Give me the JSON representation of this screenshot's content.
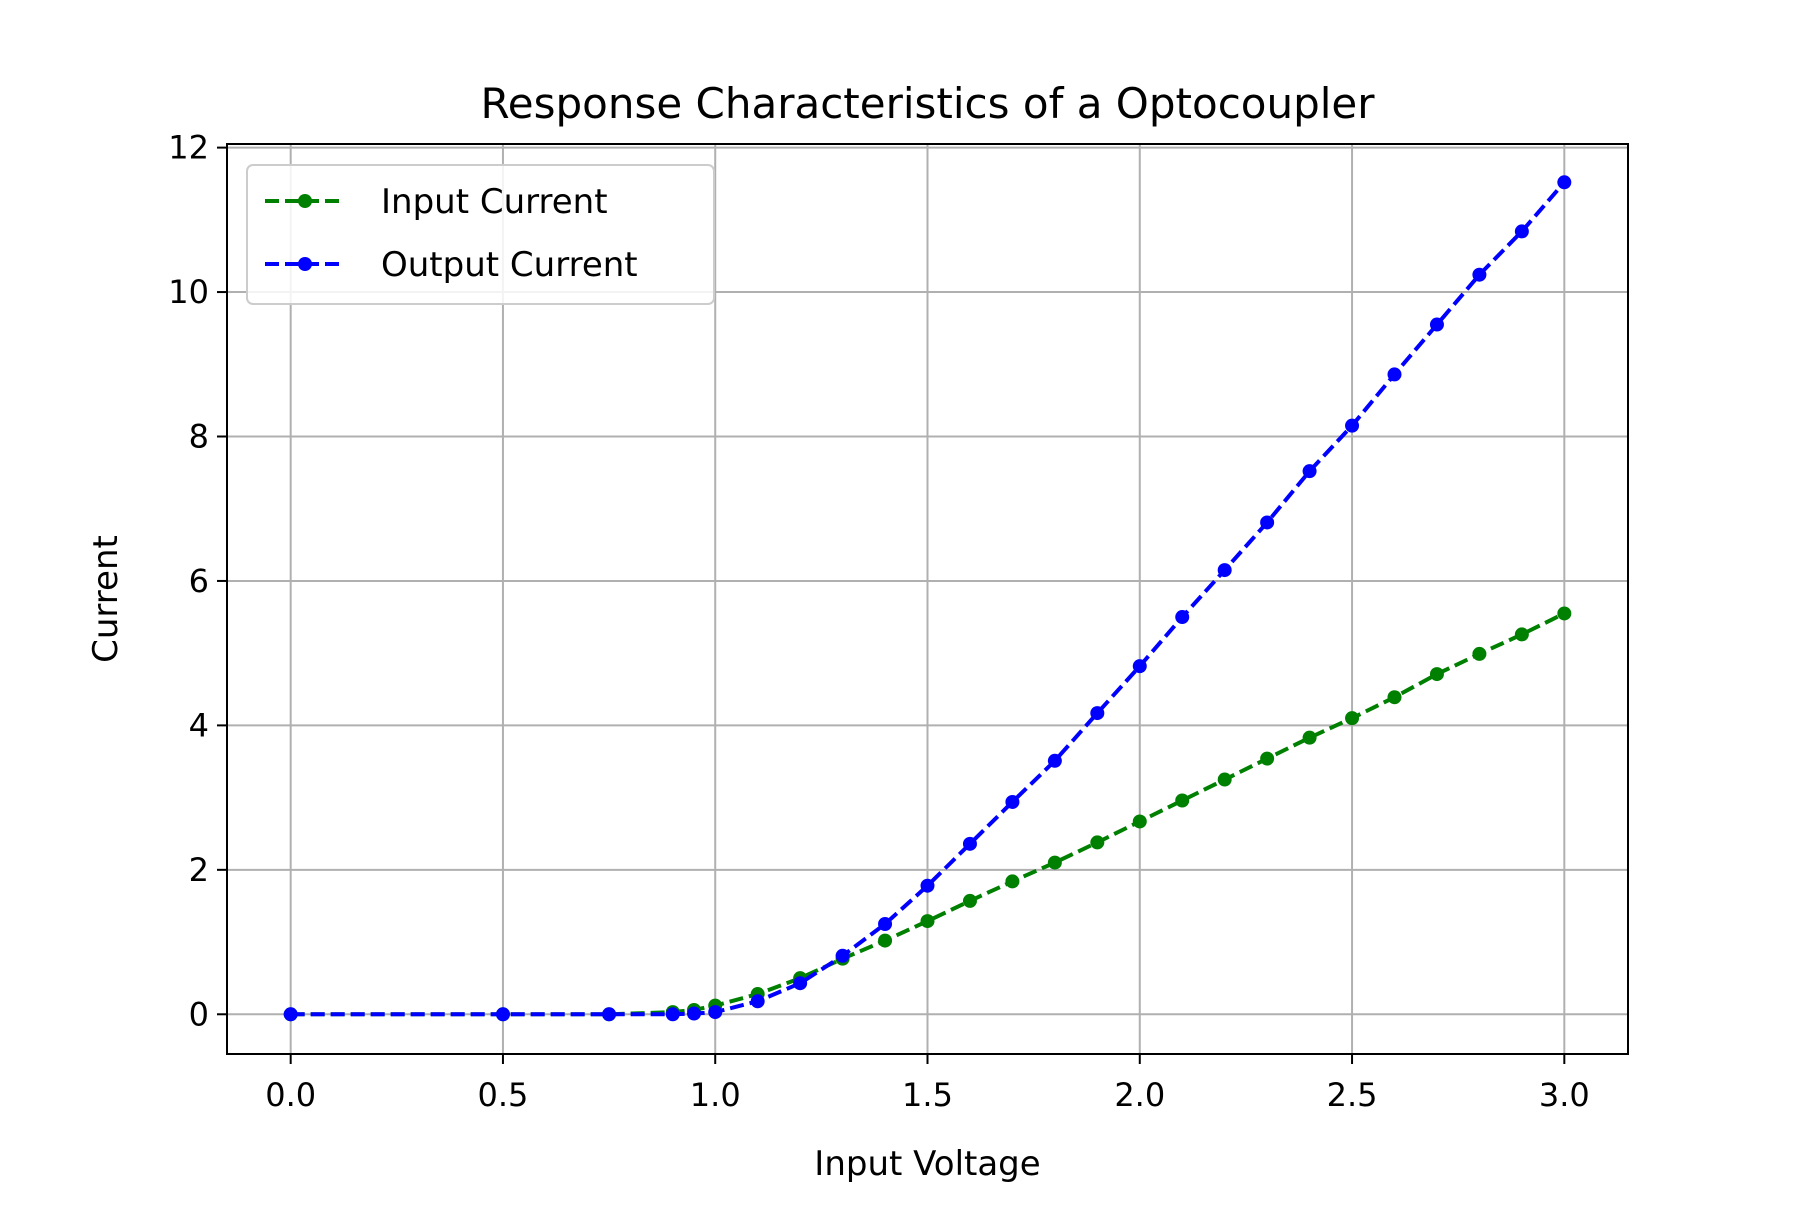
{
  "chart_data": {
    "type": "line",
    "title": "Response Characteristics of a Optocoupler",
    "xlabel": "Input Voltage",
    "ylabel": "Current",
    "xlim": [
      -0.15,
      3.15
    ],
    "ylim": [
      -0.55,
      12.05
    ],
    "xticks": [
      0.0,
      0.5,
      1.0,
      1.5,
      2.0,
      2.5,
      3.0
    ],
    "xtick_labels": [
      "0.0",
      "0.5",
      "1.0",
      "1.5",
      "2.0",
      "2.5",
      "3.0"
    ],
    "yticks": [
      0,
      2,
      4,
      6,
      8,
      10,
      12
    ],
    "ytick_labels": [
      "0",
      "2",
      "4",
      "6",
      "8",
      "10",
      "12"
    ],
    "grid": true,
    "legend_position": "top-left",
    "series": [
      {
        "name": "Input Current",
        "color": "#008000",
        "linestyle": "dashed",
        "marker": "circle",
        "x": [
          0.0,
          0.5,
          0.75,
          0.9,
          0.95,
          1.0,
          1.1,
          1.2,
          1.3,
          1.4,
          1.5,
          1.6,
          1.7,
          1.8,
          1.9,
          2.0,
          2.1,
          2.2,
          2.3,
          2.4,
          2.5,
          2.6,
          2.7,
          2.8,
          2.9,
          3.0
        ],
        "y": [
          0.0,
          0.0,
          0.0,
          0.03,
          0.06,
          0.12,
          0.28,
          0.5,
          0.77,
          1.02,
          1.29,
          1.57,
          1.84,
          2.1,
          2.38,
          2.67,
          2.96,
          3.25,
          3.54,
          3.83,
          4.1,
          4.39,
          4.71,
          4.99,
          5.26,
          5.55
        ]
      },
      {
        "name": "Output Current",
        "color": "#0000ff",
        "linestyle": "dashed",
        "marker": "circle",
        "x": [
          0.0,
          0.5,
          0.75,
          0.9,
          0.95,
          1.0,
          1.1,
          1.2,
          1.3,
          1.4,
          1.5,
          1.6,
          1.7,
          1.8,
          1.9,
          2.0,
          2.1,
          2.2,
          2.3,
          2.4,
          2.5,
          2.6,
          2.7,
          2.8,
          2.9,
          3.0
        ],
        "y": [
          0.0,
          0.0,
          0.0,
          0.0,
          0.01,
          0.03,
          0.18,
          0.43,
          0.81,
          1.25,
          1.78,
          2.36,
          2.94,
          3.51,
          4.17,
          4.82,
          5.5,
          6.15,
          6.81,
          7.52,
          8.15,
          8.86,
          9.55,
          10.24,
          10.84,
          11.52
        ]
      }
    ]
  }
}
